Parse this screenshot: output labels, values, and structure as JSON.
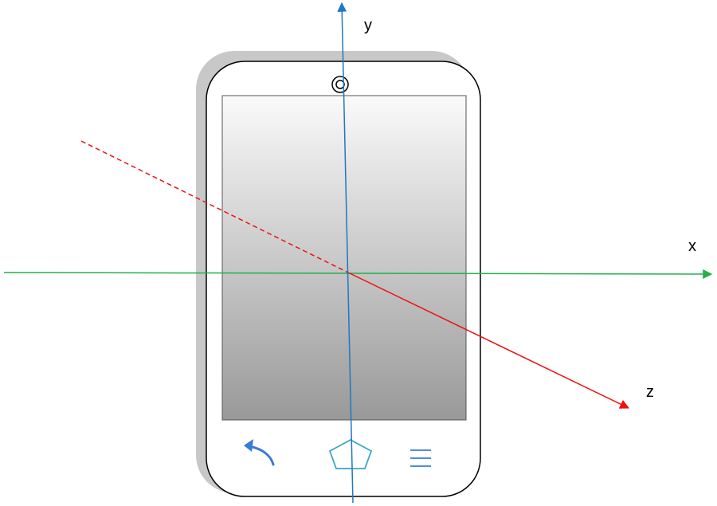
{
  "axes": {
    "x": {
      "label": "x",
      "color": "#22b14c"
    },
    "y": {
      "label": "y",
      "color": "#1f78c1"
    },
    "z": {
      "label": "z",
      "color": "#ee1111"
    }
  },
  "phone": {
    "body_fill": "#ffffff",
    "body_stroke": "#000000",
    "shadow_fill": "#c8c8c8",
    "screen_gradient": [
      "#fafafa",
      "#999999"
    ],
    "icon_color": "#3a7bd5",
    "home_icon_color": "#39a6c6",
    "icons": [
      "back-arrow-icon",
      "home-pentagon-icon",
      "menu-lines-icon",
      "camera-icon"
    ]
  }
}
